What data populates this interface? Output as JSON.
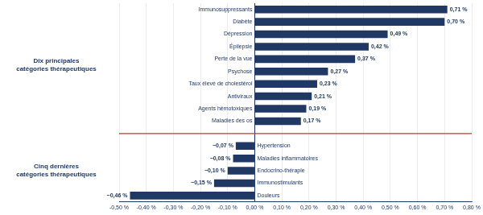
{
  "chart_data": {
    "type": "bar",
    "orientation": "horizontal",
    "categories": [
      "Immunosuppressants",
      "Diabète",
      "Dépression",
      "Épilepsie",
      "Perte de la vue",
      "Psychose",
      "Taux élevé de cholestérol",
      "Antiviraux",
      "Agents hémotoxiques",
      "Maladies des os",
      null,
      "Hypertension",
      "Maladies inflammatoires",
      "Endocrino-thérapie",
      "Immunostimulants",
      "Douleurs"
    ],
    "values": [
      0.71,
      0.7,
      0.49,
      0.42,
      0.37,
      0.27,
      0.23,
      0.21,
      0.19,
      0.17,
      null,
      -0.07,
      -0.08,
      -0.1,
      -0.15,
      -0.46
    ],
    "value_labels": [
      "0,71 %",
      "0,70 %",
      "0,49 %",
      "0,42 %",
      "0,37 %",
      "0,27 %",
      "0,23 %",
      "0,21 %",
      "0,19 %",
      "0,17 %",
      null,
      "−0,07 %",
      "−0,08 %",
      "−0,10 %",
      "−0,15 %",
      "−0,46 %"
    ],
    "data_labels": true,
    "color": "#1f3864",
    "xlim": [
      -0.5,
      0.8
    ],
    "xticks": [
      {
        "value": -0.5,
        "label": "-0,50 %"
      },
      {
        "value": -0.4,
        "label": "-0,40 %"
      },
      {
        "value": -0.3,
        "label": "-0,30 %"
      },
      {
        "value": -0.2,
        "label": "-0,20 %"
      },
      {
        "value": -0.1,
        "label": "-0,10 %"
      },
      {
        "value": 0.0,
        "label": "0,00 %"
      },
      {
        "value": 0.1,
        "label": "0,10 %"
      },
      {
        "value": 0.2,
        "label": "0,20 %"
      },
      {
        "value": 0.3,
        "label": "0,30 %"
      },
      {
        "value": 0.4,
        "label": "0,40 %"
      },
      {
        "value": 0.5,
        "label": "0,50 %"
      },
      {
        "value": 0.6,
        "label": "0,60 %"
      },
      {
        "value": 0.7,
        "label": "0,70 %"
      },
      {
        "value": 0.8,
        "label": "0,80 %"
      }
    ],
    "grid": true,
    "tick_labels": "x",
    "annotations": [
      [
        "Dix principales",
        "catégories thérapeutiques"
      ],
      [
        "Cinq dernières",
        "catégories thérapeutiques"
      ]
    ]
  }
}
